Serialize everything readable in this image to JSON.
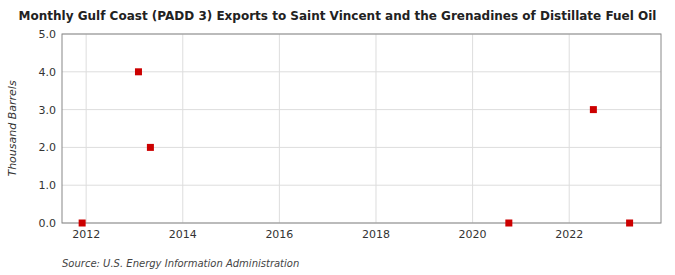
{
  "chart_data": {
    "type": "scatter",
    "title": "Monthly Gulf Coast (PADD 3) Exports to Saint Vincent and the Grenadines of Distillate Fuel Oil",
    "y_label": "Thousand Barrels",
    "source": "Source: U.S. Energy Information Administration",
    "x": [
      2011.917,
      2013.083,
      2013.33,
      2020.75,
      2022.5,
      2023.25
    ],
    "values": [
      0.0,
      4.0,
      2.0,
      0.0,
      3.0,
      0.0
    ],
    "color": "#cc0000",
    "marker": "square",
    "xlim": [
      2011.5,
      2023.9
    ],
    "ylim": [
      0.0,
      5.0
    ],
    "xticks": [
      2012,
      2014,
      2016,
      2018,
      2020,
      2022
    ],
    "yticks": [
      {
        "value": 0.0,
        "label": "0.0"
      },
      {
        "value": 1.0,
        "label": "1.0"
      },
      {
        "value": 2.0,
        "label": "2.0"
      },
      {
        "value": 3.0,
        "label": "3.0"
      },
      {
        "value": 4.0,
        "label": "4.0"
      },
      {
        "value": 5.0,
        "label": "5.0"
      }
    ],
    "grid": true
  }
}
